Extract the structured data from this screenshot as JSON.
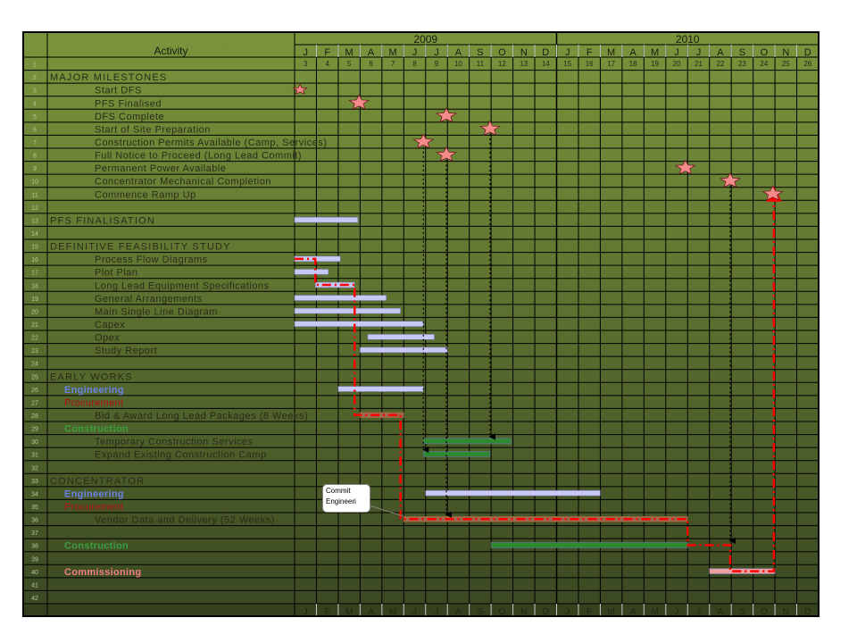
{
  "header": {
    "activity_label": "Activity",
    "years": [
      "2009",
      "2010"
    ]
  },
  "months": [
    "J",
    "F",
    "M",
    "A",
    "M",
    "J",
    "J",
    "A",
    "S",
    "O",
    "N",
    "D",
    "J",
    "F",
    "M",
    "A",
    "M",
    "J",
    "J",
    "A",
    "S",
    "O",
    "N",
    "D"
  ],
  "period_numbers": [
    "3",
    "4",
    "5",
    "6",
    "7",
    "8",
    "9",
    "10",
    "11",
    "12",
    "13",
    "14",
    "15",
    "16",
    "17",
    "18",
    "19",
    "20",
    "21",
    "22",
    "23",
    "24",
    "25",
    "26"
  ],
  "colors": {
    "bg_top": "#7a953c",
    "bg_bottom": "#3a4822",
    "engineering": "#6a82e8",
    "procurement": "#b01010",
    "construction": "#3aa040",
    "commissioning": "#f08080",
    "text": "#2a2a18",
    "bar_blue": "#c8c8f4",
    "bar_green": "#2e8a30",
    "bar_brown": "#9a6a50",
    "bar_pink": "#e8a0a0",
    "critical": "#ff0000",
    "star": "#f58a8a"
  },
  "callout": {
    "line1": "Commit",
    "line2": "Engineeri"
  },
  "chart_data": {
    "type": "gantt",
    "time_unit": "month index from Jan 2009",
    "rows": [
      {
        "n": "1",
        "label": ""
      },
      {
        "n": "2",
        "label": "MAJOR MILESTONES",
        "style": "section"
      },
      {
        "n": "3",
        "label": "Start DFS",
        "style": "task",
        "milestone": 0.25
      },
      {
        "n": "4",
        "label": "PFS Finalised",
        "style": "task",
        "milestone": 2.95
      },
      {
        "n": "5",
        "label": "DFS Complete",
        "style": "task",
        "milestone": 6.95
      },
      {
        "n": "6",
        "label": "Start of Site Preparation",
        "style": "task",
        "milestone": 8.95
      },
      {
        "n": "7",
        "label": "Construction Permits Available (Camp, Services)",
        "style": "task",
        "milestone": 5.9
      },
      {
        "n": "8",
        "label": "Full Notice to Proceed (Long Lead Commit)",
        "style": "task",
        "milestone": 6.95
      },
      {
        "n": "9",
        "label": "Permanent Power Available",
        "style": "task",
        "milestone": 17.9
      },
      {
        "n": "10",
        "label": "Concentrator Mechanical Completion",
        "style": "task",
        "milestone": 19.95
      },
      {
        "n": "11",
        "label": "Commence Ramp Up",
        "style": "task",
        "milestone": 21.9
      },
      {
        "n": "12",
        "label": ""
      },
      {
        "n": "13",
        "label": "PFS FINALISATION",
        "style": "section",
        "bar": [
          0,
          2.9,
          "bar_blue"
        ]
      },
      {
        "n": "14",
        "label": ""
      },
      {
        "n": "15",
        "label": "DEFINITIVE FEASIBILITY STUDY",
        "style": "section"
      },
      {
        "n": "16",
        "label": "Process Flow Diagrams",
        "style": "task",
        "bar": [
          0,
          2.1,
          "bar_blue"
        ]
      },
      {
        "n": "17",
        "label": "Plot Plan",
        "style": "task",
        "bar": [
          0,
          1.55,
          "bar_blue"
        ]
      },
      {
        "n": "18",
        "label": "Long Lead Equipment Specifications",
        "style": "task",
        "bar": [
          0.95,
          2.75,
          "bar_blue"
        ]
      },
      {
        "n": "19",
        "label": "General Arrangements",
        "style": "task",
        "bar": [
          0,
          4.2,
          "bar_blue"
        ]
      },
      {
        "n": "20",
        "label": "Main Single Line Diagram",
        "style": "task",
        "bar": [
          0,
          4.85,
          "bar_blue"
        ]
      },
      {
        "n": "21",
        "label": "Capex",
        "style": "task",
        "bar": [
          0,
          5.9,
          "bar_blue"
        ]
      },
      {
        "n": "22",
        "label": "Opex",
        "style": "task",
        "bar": [
          3.35,
          6.4,
          "bar_blue"
        ]
      },
      {
        "n": "23",
        "label": "Study Report",
        "style": "task",
        "bar": [
          3,
          7,
          "bar_blue"
        ]
      },
      {
        "n": "24",
        "label": ""
      },
      {
        "n": "25",
        "label": "EARLY WORKS",
        "style": "section"
      },
      {
        "n": "26",
        "label": "Engineering",
        "style": "engineering",
        "bar": [
          2,
          5.9,
          "bar_blue"
        ]
      },
      {
        "n": "27",
        "label": "Procurement",
        "style": "procurement"
      },
      {
        "n": "28",
        "label": "Bid & Award Long Lead Packages (8 Weeks)",
        "style": "task",
        "bar": [
          3,
          5,
          "bar_brown"
        ]
      },
      {
        "n": "29",
        "label": "Construction",
        "style": "construction"
      },
      {
        "n": "30",
        "label": "Temporary Construction Services",
        "style": "task",
        "bar": [
          5.9,
          9.9,
          "bar_green"
        ]
      },
      {
        "n": "31",
        "label": "Expand Existing Construction Camp",
        "style": "task",
        "bar": [
          5.9,
          8.95,
          "bar_green"
        ]
      },
      {
        "n": "32",
        "label": ""
      },
      {
        "n": "33",
        "label": "CONCENTRATOR",
        "style": "section"
      },
      {
        "n": "34",
        "label": "Engineering",
        "style": "engineering",
        "bar": [
          6,
          14,
          "bar_blue"
        ]
      },
      {
        "n": "35",
        "label": "Procurement",
        "style": "procurement"
      },
      {
        "n": "36",
        "label": "Vendor Data and Delivery (52 Weeks)",
        "style": "task",
        "bar": [
          5,
          18,
          "bar_brown"
        ]
      },
      {
        "n": "37",
        "label": ""
      },
      {
        "n": "38",
        "label": "Construction",
        "style": "construction",
        "bar": [
          9,
          18,
          "bar_green"
        ]
      },
      {
        "n": "39",
        "label": ""
      },
      {
        "n": "40",
        "label": "Commissioning",
        "style": "commissioning",
        "bar": [
          19,
          22,
          "bar_pink"
        ]
      },
      {
        "n": "41",
        "label": ""
      },
      {
        "n": "42",
        "label": ""
      }
    ],
    "critical_path": [
      [
        0,
        16
      ],
      [
        0.95,
        16
      ],
      [
        0.95,
        18
      ],
      [
        2.75,
        18
      ],
      [
        2.75,
        28
      ],
      [
        4.85,
        28
      ],
      [
        4.85,
        36
      ],
      [
        18,
        36
      ],
      [
        18,
        38
      ],
      [
        19.95,
        38
      ],
      [
        19.95,
        40
      ],
      [
        21.95,
        40
      ],
      [
        21.95,
        11
      ]
    ],
    "dependency_links": [
      [
        5.9,
        7,
        31
      ],
      [
        6.95,
        8,
        36
      ],
      [
        8.95,
        6,
        30
      ],
      [
        19.95,
        10,
        38
      ]
    ]
  }
}
